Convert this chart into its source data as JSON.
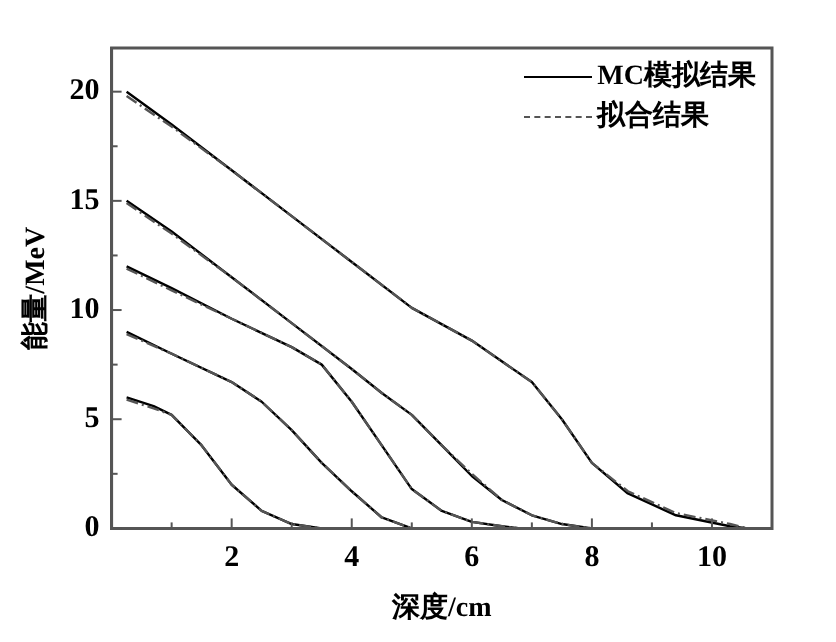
{
  "chart_data": {
    "type": "line",
    "xlabel": "深度/cm",
    "ylabel": "能量/MeV",
    "xlim": [
      0,
      11
    ],
    "ylim": [
      0,
      22
    ],
    "xticks": [
      {
        "value": 1,
        "label": null
      },
      2,
      {
        "value": 3,
        "label": null
      },
      4,
      {
        "value": 5,
        "label": null
      },
      6,
      {
        "value": 7,
        "label": null
      },
      8,
      {
        "value": 9,
        "label": null
      },
      10
    ],
    "yticks": [
      0,
      {
        "value": 2.5,
        "label": null
      },
      5,
      {
        "value": 7.5,
        "label": null
      },
      10,
      {
        "value": 12.5,
        "label": null
      },
      15,
      {
        "value": 17.5,
        "label": null
      },
      20
    ],
    "grid": false,
    "legend": "top right",
    "marker": "none",
    "series": [
      {
        "name": "MC模拟结果",
        "color": "#000000",
        "line_style": "solid",
        "x": [
          0.25,
          1,
          2,
          3,
          4,
          5,
          6,
          7,
          7.5,
          8,
          8.6,
          9.4,
          10.3,
          10.6
        ],
        "values": [
          20,
          18.5,
          16.4,
          14.3,
          12.2,
          10.1,
          8.6,
          6.7,
          5,
          3,
          1.6,
          0.6,
          0.1,
          0
        ]
      },
      {
        "color": "#000000",
        "line_style": "solid",
        "x": [
          0.25,
          1,
          2,
          3,
          4,
          4.5,
          5,
          5.5,
          6,
          6.5,
          7,
          7.5,
          8
        ],
        "values": [
          15,
          13.6,
          11.5,
          9.4,
          7.3,
          6.2,
          5.2,
          3.8,
          2.4,
          1.3,
          0.6,
          0.2,
          0
        ]
      },
      {
        "color": "#000000",
        "line_style": "solid",
        "x": [
          0.25,
          1,
          2,
          3,
          3.5,
          4,
          4.5,
          5,
          5.5,
          6,
          6.5,
          6.8
        ],
        "values": [
          12,
          11,
          9.6,
          8.3,
          7.5,
          5.8,
          3.8,
          1.8,
          0.8,
          0.3,
          0.1,
          0
        ]
      },
      {
        "color": "#000000",
        "line_style": "solid",
        "x": [
          0.25,
          1,
          2,
          2.5,
          3,
          3.5,
          4,
          4.5,
          5
        ],
        "values": [
          9,
          8,
          6.7,
          5.8,
          4.5,
          3,
          1.7,
          0.5,
          0
        ]
      },
      {
        "color": "#000000",
        "line_style": "solid",
        "x": [
          0.25,
          0.7,
          1,
          1.5,
          2,
          2.5,
          3,
          3.5
        ],
        "values": [
          6,
          5.6,
          5.2,
          3.8,
          2,
          0.8,
          0.2,
          0
        ]
      },
      {
        "name": "拟合结果",
        "color": "#555555",
        "line_style": "dashed",
        "x": [
          0.25,
          1,
          2,
          3,
          4,
          5,
          6,
          7,
          7.5,
          8,
          8.6,
          9.4,
          10.3,
          10.6
        ],
        "values": [
          19.8,
          18.4,
          16.4,
          14.3,
          12.2,
          10.1,
          8.6,
          6.7,
          5,
          3,
          1.7,
          0.7,
          0.2,
          0
        ]
      },
      {
        "color": "#555555",
        "line_style": "dashed",
        "x": [
          0.25,
          1,
          2,
          3,
          4,
          4.5,
          5,
          5.5,
          6,
          6.5,
          7,
          7.5,
          8
        ],
        "values": [
          14.9,
          13.5,
          11.5,
          9.4,
          7.3,
          6.2,
          5.2,
          3.8,
          2.5,
          1.3,
          0.6,
          0.2,
          0
        ]
      },
      {
        "color": "#555555",
        "line_style": "dashed",
        "x": [
          0.25,
          1,
          2,
          3,
          3.5,
          4,
          4.5,
          5,
          5.5,
          6,
          6.5,
          6.8
        ],
        "values": [
          11.9,
          10.9,
          9.6,
          8.3,
          7.5,
          5.8,
          3.8,
          1.8,
          0.8,
          0.3,
          0.1,
          0
        ]
      },
      {
        "color": "#555555",
        "line_style": "dashed",
        "x": [
          0.25,
          1,
          2,
          2.5,
          3,
          3.5,
          4,
          4.5,
          5
        ],
        "values": [
          8.9,
          8,
          6.7,
          5.8,
          4.5,
          3,
          1.7,
          0.5,
          0
        ]
      },
      {
        "color": "#555555",
        "line_style": "dashed",
        "x": [
          0.25,
          0.7,
          1,
          1.5,
          2,
          2.5,
          3,
          3.5
        ],
        "values": [
          5.9,
          5.5,
          5.2,
          3.8,
          2,
          0.8,
          0.2,
          0
        ]
      }
    ]
  }
}
